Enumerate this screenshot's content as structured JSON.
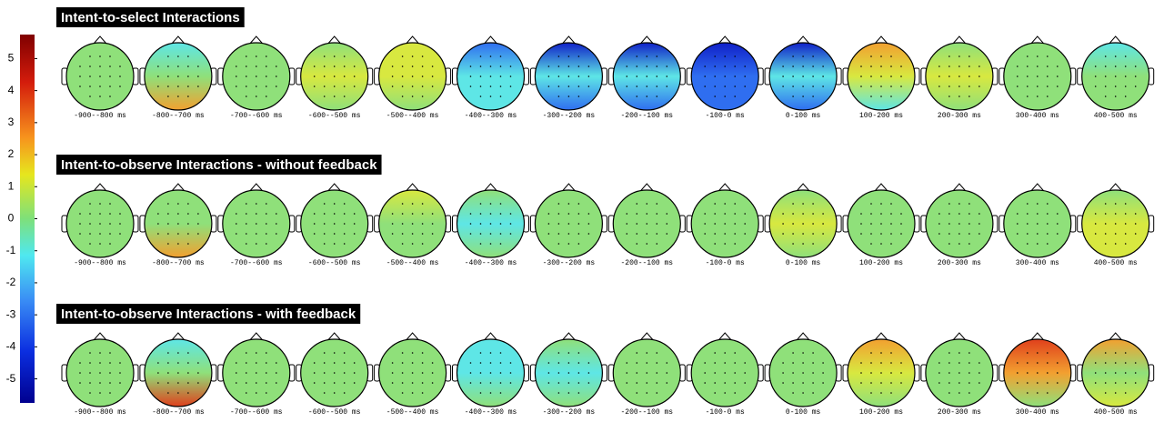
{
  "colorbar": {
    "lim": [
      -5.75,
      5.75
    ],
    "ticks": [
      5,
      4,
      3,
      2,
      1,
      0,
      -1,
      -2,
      -3,
      -4,
      -5
    ]
  },
  "time_windows": [
    "-900--800 ms",
    "-800--700 ms",
    "-700--600 ms",
    "-600--500 ms",
    "-500--400 ms",
    "-400--300 ms",
    "-300--200 ms",
    "-200--100 ms",
    "-100-0 ms",
    "0-100 ms",
    "100-200 ms",
    "200-300 ms",
    "300-400 ms",
    "400-500 ms"
  ],
  "rows": [
    {
      "title": "Intent-to-select Interactions"
    },
    {
      "title": "Intent-to-observe Interactions - without feedback"
    },
    {
      "title": "Intent-to-observe Interactions - with feedback"
    }
  ]
}
